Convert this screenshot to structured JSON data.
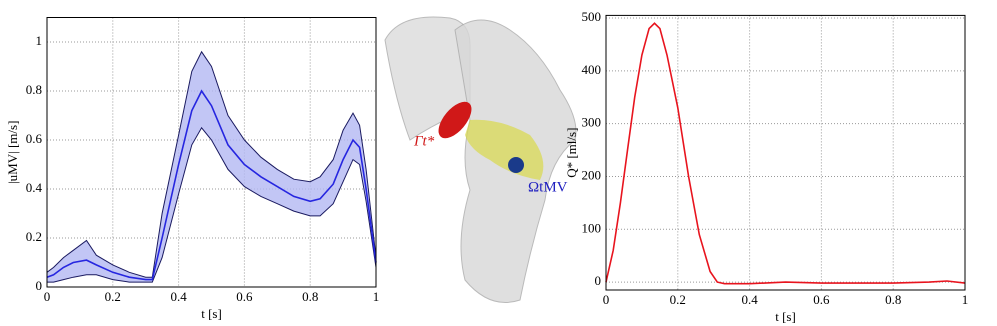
{
  "chart_data": [
    {
      "type": "line",
      "x_label": "t [s]",
      "y_label": "|uMV| [m/s]",
      "x": [
        0,
        0.02,
        0.05,
        0.08,
        0.12,
        0.15,
        0.2,
        0.25,
        0.3,
        0.32,
        0.35,
        0.4,
        0.44,
        0.47,
        0.5,
        0.55,
        0.6,
        0.65,
        0.7,
        0.75,
        0.8,
        0.83,
        0.87,
        0.9,
        0.93,
        0.95,
        0.97,
        1
      ],
      "series": [
        {
          "color": "#2626e0",
          "values": [
            0.04,
            0.05,
            0.08,
            0.1,
            0.11,
            0.09,
            0.06,
            0.04,
            0.03,
            0.03,
            0.2,
            0.5,
            0.72,
            0.8,
            0.74,
            0.58,
            0.5,
            0.45,
            0.41,
            0.37,
            0.35,
            0.36,
            0.42,
            0.52,
            0.6,
            0.57,
            0.4,
            0.1
          ]
        }
      ],
      "band": {
        "color": "#b3b8f2",
        "line_color": "#1a1a60",
        "upper": [
          0.06,
          0.08,
          0.12,
          0.15,
          0.19,
          0.13,
          0.09,
          0.06,
          0.04,
          0.04,
          0.3,
          0.62,
          0.88,
          0.96,
          0.9,
          0.7,
          0.6,
          0.53,
          0.48,
          0.44,
          0.43,
          0.45,
          0.52,
          0.64,
          0.71,
          0.66,
          0.48,
          0.12
        ],
        "lower": [
          0.02,
          0.02,
          0.03,
          0.04,
          0.05,
          0.05,
          0.03,
          0.02,
          0.02,
          0.02,
          0.12,
          0.38,
          0.58,
          0.65,
          0.6,
          0.48,
          0.41,
          0.37,
          0.34,
          0.31,
          0.29,
          0.29,
          0.34,
          0.43,
          0.52,
          0.5,
          0.35,
          0.08
        ]
      },
      "xlim": [
        0,
        1
      ],
      "xticks": [
        0,
        0.2,
        0.4,
        0.6,
        0.8,
        1
      ],
      "ylim": [
        0,
        1.1
      ],
      "yticks": [
        0,
        0.2,
        0.4,
        0.6,
        0.8,
        1
      ],
      "grid": true
    },
    {
      "type": "line",
      "x_label": "t [s]",
      "y_label": "Q* [ml/s]",
      "x": [
        0,
        0.02,
        0.04,
        0.06,
        0.08,
        0.1,
        0.12,
        0.135,
        0.15,
        0.17,
        0.2,
        0.23,
        0.26,
        0.29,
        0.31,
        0.33,
        0.4,
        0.5,
        0.6,
        0.7,
        0.8,
        0.9,
        0.95,
        1
      ],
      "series": [
        {
          "color": "#e8141e",
          "values": [
            0,
            60,
            150,
            250,
            350,
            430,
            480,
            490,
            480,
            430,
            330,
            200,
            90,
            20,
            0,
            -3,
            -3,
            0,
            -2,
            -2,
            -2,
            0,
            2,
            -2
          ]
        }
      ],
      "xlim": [
        0,
        1
      ],
      "xticks": [
        0,
        0.2,
        0.4,
        0.6,
        0.8,
        1
      ],
      "ylim": [
        -15,
        505
      ],
      "yticks": [
        0,
        100,
        200,
        300,
        400,
        500
      ],
      "grid": true
    }
  ],
  "illustration": {
    "labels": [
      "Γt*",
      "ΩtMV"
    ]
  }
}
